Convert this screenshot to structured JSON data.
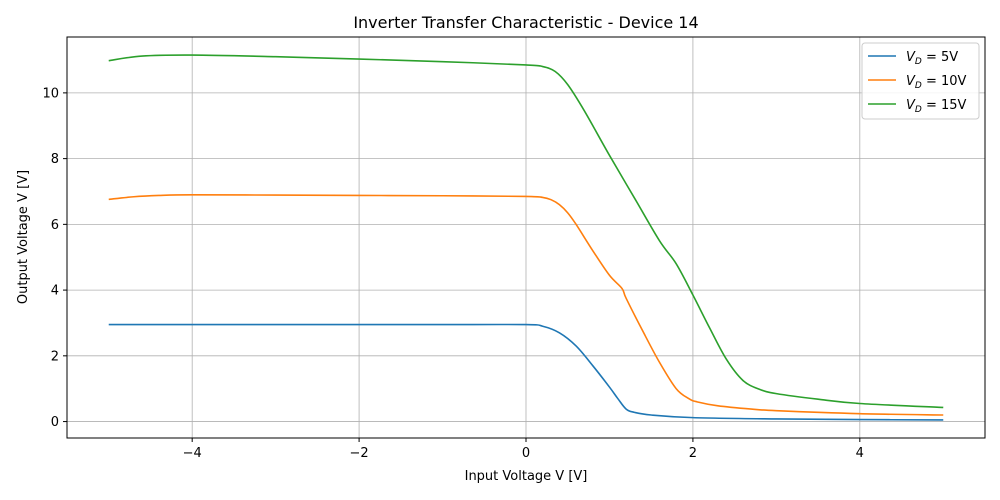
{
  "chart_data": {
    "type": "line",
    "title": "Inverter Transfer Characteristic - Device 14",
    "xlabel": "Input Voltage V [V]",
    "ylabel": "Output Voltage V [V]",
    "xlim": [
      -5.5,
      5.5
    ],
    "ylim": [
      -0.5,
      11.7
    ],
    "xticks": [
      -4,
      -2,
      0,
      2,
      4
    ],
    "xtick_labels": [
      "−4",
      "−2",
      "0",
      "2",
      "4"
    ],
    "yticks": [
      0,
      2,
      4,
      6,
      8,
      10
    ],
    "ytick_labels": [
      "0",
      "2",
      "4",
      "6",
      "8",
      "10"
    ],
    "grid": true,
    "legend_position": "top-right",
    "series": [
      {
        "name": "V_D = 5V",
        "legend_sub": "D",
        "legend_suffix": " = 5V",
        "color": "#1f77b4",
        "x": [
          -5,
          -4,
          -3,
          -2,
          -1,
          0,
          0.2,
          0.4,
          0.6,
          0.8,
          1.0,
          1.1,
          1.2,
          1.3,
          1.5,
          2,
          3,
          4,
          5
        ],
        "y": [
          2.95,
          2.95,
          2.95,
          2.95,
          2.95,
          2.95,
          2.9,
          2.7,
          2.3,
          1.7,
          1.05,
          0.7,
          0.38,
          0.28,
          0.2,
          0.12,
          0.08,
          0.06,
          0.05
        ]
      },
      {
        "name": "V_D = 10V",
        "legend_sub": "D",
        "legend_suffix": " = 10V",
        "color": "#ff7f0e",
        "x": [
          -5,
          -4.7,
          -4.4,
          -4,
          -3,
          -2,
          -1,
          0,
          0.2,
          0.3,
          0.4,
          0.5,
          0.6,
          0.8,
          1.0,
          1.15,
          1.2,
          1.4,
          1.6,
          1.8,
          1.95,
          2.05,
          2.3,
          2.7,
          3,
          4,
          5
        ],
        "y": [
          6.76,
          6.84,
          6.88,
          6.9,
          6.89,
          6.88,
          6.87,
          6.85,
          6.82,
          6.75,
          6.6,
          6.35,
          6.0,
          5.2,
          4.45,
          4.05,
          3.75,
          2.75,
          1.8,
          1.0,
          0.7,
          0.6,
          0.48,
          0.38,
          0.33,
          0.24,
          0.2
        ]
      },
      {
        "name": "V_D = 15V",
        "legend_sub": "D",
        "legend_suffix": " = 15V",
        "color": "#2ca02c",
        "x": [
          -5,
          -4.6,
          -4,
          -3,
          -2,
          -1,
          0,
          0.2,
          0.35,
          0.5,
          0.7,
          1.0,
          1.3,
          1.6,
          1.8,
          2.0,
          2.2,
          2.4,
          2.6,
          2.8,
          3.0,
          3.5,
          4,
          5
        ],
        "y": [
          10.98,
          11.12,
          11.15,
          11.1,
          11.03,
          10.95,
          10.85,
          10.8,
          10.65,
          10.25,
          9.45,
          8.1,
          6.8,
          5.5,
          4.8,
          3.85,
          2.85,
          1.9,
          1.25,
          0.98,
          0.85,
          0.68,
          0.55,
          0.43
        ]
      }
    ]
  }
}
